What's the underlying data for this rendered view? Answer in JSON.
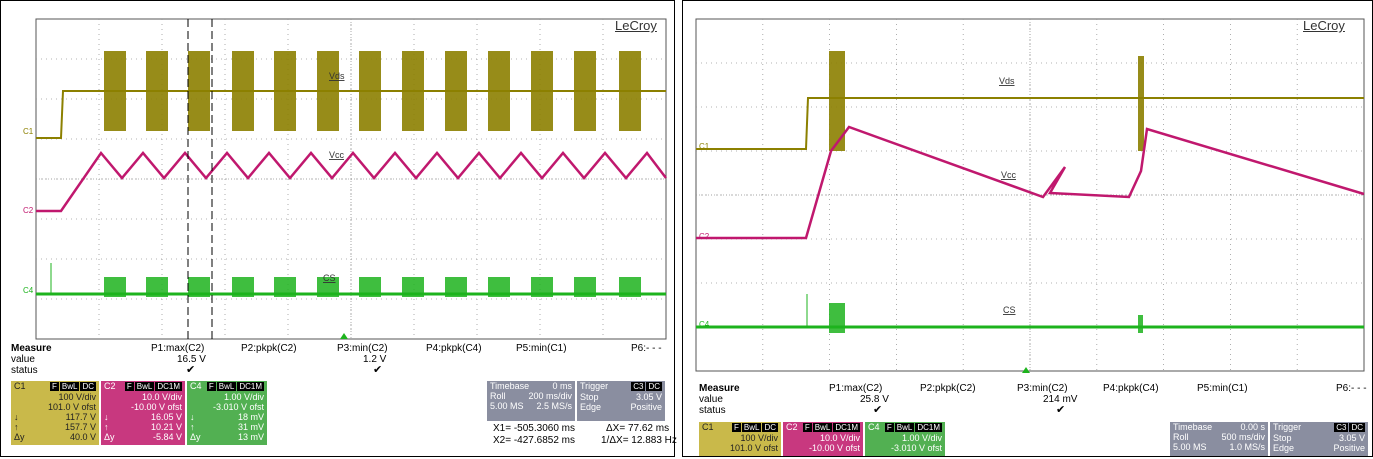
{
  "left": {
    "brand": "LeCroy",
    "labels": {
      "vds": "Vds",
      "vcc": "Vcc",
      "cs": "CS"
    },
    "channel_markers": [
      "C1",
      "C2",
      "C4"
    ],
    "measure": {
      "title": "Measure",
      "row_value": "value",
      "row_status": "status",
      "params": [
        "P1:max(C2)",
        "P2:pkpk(C2)",
        "P3:min(C2)",
        "P4:pkpk(C4)",
        "P5:min(C1)",
        "P6:- - -"
      ],
      "values": [
        "16.5 V",
        "",
        "1.2 V",
        "",
        "",
        ""
      ]
    },
    "c1": {
      "name": "C1",
      "tags": [
        "F",
        "BwL",
        "DC"
      ],
      "vdiv": "100 V/div",
      "ofst": "101.0 V ofst",
      "down": "117.7 V",
      "up": "157.7 V",
      "dy": "40.0 V"
    },
    "c2": {
      "name": "C2",
      "tags": [
        "F",
        "BwL",
        "DC1M"
      ],
      "vdiv": "10.0 V/div",
      "ofst": "-10.00 V ofst",
      "down": "16.05 V",
      "up": "10.21 V",
      "dy": "-5.84 V"
    },
    "c4": {
      "name": "C4",
      "tags": [
        "F",
        "BwL",
        "DC1M"
      ],
      "vdiv": "1.00 V/div",
      "ofst": "-3.010 V ofst",
      "down": "18 mV",
      "up": "31 mV",
      "dy": "13 mV"
    },
    "timebase": {
      "label": "Timebase",
      "delay": "0 ms",
      "mode": "Roll",
      "tdiv": "200 ms/div",
      "samples": "5.00 MS",
      "rate": "2.5 MS/s"
    },
    "trigger": {
      "label": "Trigger",
      "chan": "C3",
      "coupling": "DC",
      "state": "Stop",
      "level": "3.05 V",
      "type": "Edge",
      "slope": "Positive"
    },
    "cursor": {
      "x1": "X1= -505.3060 ms",
      "dx": "ΔX=  77.62 ms",
      "x2": "X2= -427.6852 ms",
      "invdx": "1/ΔX=  12.883 Hz"
    }
  },
  "right": {
    "brand": "LeCroy",
    "labels": {
      "vds": "Vds",
      "vcc": "Vcc",
      "cs": "CS"
    },
    "channel_markers": [
      "C1",
      "C2",
      "C4"
    ],
    "measure": {
      "title": "Measure",
      "row_value": "value",
      "row_status": "status",
      "params": [
        "P1:max(C2)",
        "P2:pkpk(C2)",
        "P3:min(C2)",
        "P4:pkpk(C4)",
        "P5:min(C1)",
        "P6:- - -"
      ],
      "values": [
        "25.8 V",
        "",
        "214 mV",
        "",
        "",
        ""
      ]
    },
    "c1": {
      "name": "C1",
      "tags": [
        "F",
        "BwL",
        "DC"
      ],
      "vdiv": "100 V/div",
      "ofst": "101.0 V ofst"
    },
    "c2": {
      "name": "C2",
      "tags": [
        "F",
        "BwL",
        "DC1M"
      ],
      "vdiv": "10.0 V/div",
      "ofst": "-10.00 V ofst"
    },
    "c4": {
      "name": "C4",
      "tags": [
        "F",
        "BwL",
        "DC1M"
      ],
      "vdiv": "1.00 V/div",
      "ofst": "-3.010 V ofst"
    },
    "timebase": {
      "label": "Timebase",
      "delay": "0.00 s",
      "mode": "Roll",
      "tdiv": "500 ms/div",
      "samples": "5.00 MS",
      "rate": "1.0 MS/s"
    },
    "trigger": {
      "label": "Trigger",
      "chan": "C3",
      "coupling": "DC",
      "state": "Stop",
      "level": "3.05 V",
      "type": "Edge",
      "slope": "Positive"
    }
  },
  "colors": {
    "c1": "#8c8000",
    "c2": "#c0186e",
    "c4": "#1db31d",
    "grid": "#9a9a9a"
  }
}
